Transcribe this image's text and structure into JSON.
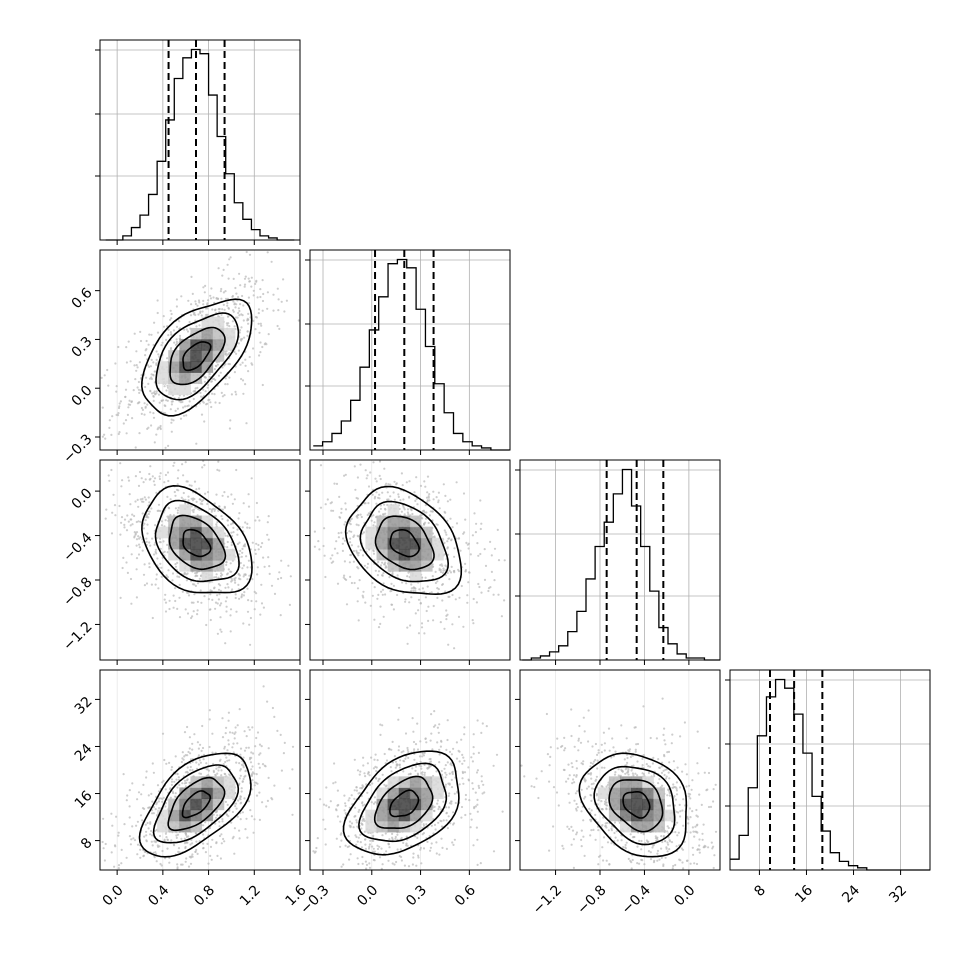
{
  "chart_data": {
    "type": "corner",
    "n_params": 4,
    "axes": [
      {
        "range": [
          -0.15,
          1.6
        ],
        "ticks": [
          0.0,
          0.4,
          0.8,
          1.2,
          1.6
        ],
        "tick_labels": [
          "0.0",
          "0.4",
          "0.8",
          "1.2",
          "1.6"
        ]
      },
      {
        "range": [
          -0.38,
          0.85
        ],
        "ticks": [
          -0.3,
          0.0,
          0.3,
          0.6
        ],
        "tick_labels": [
          "−0.3",
          "0.0",
          "0.3",
          "0.6"
        ]
      },
      {
        "range": [
          -1.52,
          0.28
        ],
        "ticks": [
          -1.2,
          -0.8,
          -0.4,
          0.0
        ],
        "tick_labels": [
          "−1.2",
          "−0.8",
          "−0.4",
          "0.0"
        ]
      },
      {
        "range": [
          3,
          37
        ],
        "ticks": [
          8,
          16,
          24,
          32
        ],
        "tick_labels": [
          "8",
          "16",
          "24",
          "32"
        ]
      }
    ],
    "marginals": [
      {
        "edges_start": -0.1,
        "bin_width": 0.075,
        "counts": [
          0,
          0,
          2,
          6,
          12,
          22,
          38,
          58,
          78,
          88,
          92,
          90,
          70,
          50,
          32,
          18,
          10,
          5,
          2,
          1,
          0,
          0
        ],
        "quantiles": [
          0.45,
          0.69,
          0.94
        ]
      },
      {
        "edges_start": -0.36,
        "bin_width": 0.0575,
        "counts": [
          2,
          4,
          8,
          14,
          24,
          40,
          58,
          74,
          90,
          92,
          88,
          68,
          50,
          32,
          18,
          8,
          4,
          2,
          1,
          0,
          0
        ],
        "quantiles": [
          0.02,
          0.2,
          0.38
        ]
      },
      {
        "edges_start": -1.5,
        "bin_width": 0.082,
        "counts": [
          0,
          1,
          2,
          4,
          7,
          14,
          24,
          40,
          56,
          68,
          82,
          94,
          76,
          56,
          34,
          16,
          8,
          3,
          1,
          1,
          0,
          0
        ],
        "quantiles": [
          -0.74,
          -0.47,
          -0.23
        ]
      },
      {
        "edges_start": 3,
        "bin_width": 1.55,
        "counts": [
          5,
          16,
          38,
          62,
          80,
          88,
          84,
          72,
          54,
          34,
          18,
          8,
          4,
          2,
          1,
          0,
          0,
          0,
          0,
          0,
          0,
          0
        ],
        "quantiles": [
          9.8,
          13.9,
          18.7
        ]
      }
    ],
    "correlations": [
      [
        1,
        0.55,
        -0.35,
        0.55
      ],
      [
        0.55,
        1,
        -0.3,
        0.4
      ],
      [
        -0.35,
        -0.3,
        1,
        -0.25
      ],
      [
        0.55,
        0.4,
        -0.25,
        1
      ]
    ],
    "means": [
      0.69,
      0.2,
      -0.47,
      14.2
    ],
    "sds": [
      0.24,
      0.175,
      0.24,
      4.4
    ],
    "grid": true,
    "contour_levels": [
      0.5,
      1.0,
      1.5,
      2.0
    ]
  }
}
